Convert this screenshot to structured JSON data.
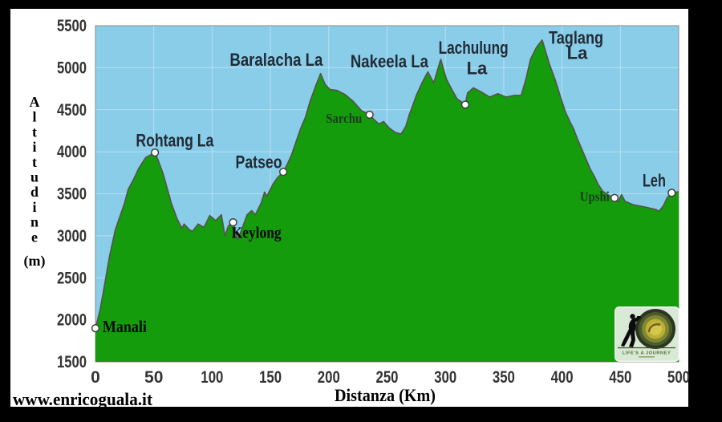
{
  "watermark": {
    "text": "www.enricoguala.it"
  },
  "axes": {
    "y_title": "Altitudine",
    "y_unit": "(m)",
    "x_title": "Distanza (Km)",
    "x_ticks": [
      0,
      50,
      100,
      150,
      200,
      250,
      300,
      350,
      400,
      450,
      500
    ],
    "y_ticks": [
      1500,
      2000,
      2500,
      3000,
      3500,
      4000,
      4500,
      5000,
      5500
    ],
    "x_range": [
      0,
      500
    ],
    "y_range": [
      1500,
      5500
    ],
    "grid": true
  },
  "colors": {
    "background": "#000000",
    "panel": "#ffffff",
    "sky": "#89cde9",
    "terrain": "#149c0c",
    "terrain_outline": "#56524a",
    "grid": "rgba(255,255,255,0.38)",
    "plot_border": "#8a8a8a",
    "marker_fill": "#ffffff",
    "marker_stroke": "#3f3f3f",
    "tick_text": "#333333",
    "label_sans": "#222b36",
    "label_serif": "#070707",
    "label_green": "#1e3a1e",
    "title_text": "#000000"
  },
  "chart_data": {
    "type": "area",
    "title": "",
    "xlabel": "Distanza (Km)",
    "ylabel": "Altitudine (m)",
    "xlim": [
      0,
      500
    ],
    "ylim": [
      1500,
      5500
    ],
    "grid": true,
    "series": [
      {
        "name": "elevation-profile",
        "points": [
          [
            0,
            1900
          ],
          [
            4,
            2120
          ],
          [
            8,
            2430
          ],
          [
            12,
            2750
          ],
          [
            17,
            3070
          ],
          [
            21,
            3230
          ],
          [
            25,
            3390
          ],
          [
            28,
            3550
          ],
          [
            33,
            3680
          ],
          [
            37,
            3800
          ],
          [
            43,
            3930
          ],
          [
            47,
            3960
          ],
          [
            51,
            3990
          ],
          [
            54,
            3890
          ],
          [
            58,
            3740
          ],
          [
            65,
            3390
          ],
          [
            70,
            3200
          ],
          [
            74,
            3090
          ],
          [
            76,
            3140
          ],
          [
            80,
            3080
          ],
          [
            83,
            3050
          ],
          [
            88,
            3140
          ],
          [
            93,
            3100
          ],
          [
            98,
            3240
          ],
          [
            103,
            3180
          ],
          [
            108,
            3250
          ],
          [
            111,
            3000
          ],
          [
            114,
            3120
          ],
          [
            118,
            3160
          ],
          [
            120,
            3060
          ],
          [
            122,
            2950
          ],
          [
            126,
            3100
          ],
          [
            130,
            3250
          ],
          [
            134,
            3300
          ],
          [
            137,
            3250
          ],
          [
            142,
            3390
          ],
          [
            145,
            3520
          ],
          [
            147,
            3470
          ],
          [
            152,
            3610
          ],
          [
            156,
            3690
          ],
          [
            161,
            3760
          ],
          [
            164,
            3840
          ],
          [
            168,
            3960
          ],
          [
            173,
            4160
          ],
          [
            176,
            4280
          ],
          [
            180,
            4410
          ],
          [
            184,
            4600
          ],
          [
            189,
            4790
          ],
          [
            193,
            4930
          ],
          [
            197,
            4800
          ],
          [
            201,
            4740
          ],
          [
            207,
            4730
          ],
          [
            214,
            4680
          ],
          [
            221,
            4600
          ],
          [
            228,
            4490
          ],
          [
            235,
            4440
          ],
          [
            239,
            4380
          ],
          [
            243,
            4330
          ],
          [
            247,
            4360
          ],
          [
            252,
            4280
          ],
          [
            257,
            4230
          ],
          [
            262,
            4210
          ],
          [
            266,
            4300
          ],
          [
            269,
            4440
          ],
          [
            272,
            4550
          ],
          [
            275,
            4670
          ],
          [
            280,
            4820
          ],
          [
            283,
            4900
          ],
          [
            285,
            4950
          ],
          [
            288,
            4870
          ],
          [
            290,
            4820
          ],
          [
            293,
            4960
          ],
          [
            296,
            5100
          ],
          [
            298,
            5000
          ],
          [
            301,
            4860
          ],
          [
            306,
            4730
          ],
          [
            310,
            4630
          ],
          [
            314,
            4590
          ],
          [
            317,
            4560
          ],
          [
            319,
            4700
          ],
          [
            324,
            4760
          ],
          [
            331,
            4710
          ],
          [
            338,
            4650
          ],
          [
            345,
            4690
          ],
          [
            352,
            4650
          ],
          [
            359,
            4670
          ],
          [
            365,
            4670
          ],
          [
            369,
            4860
          ],
          [
            373,
            5100
          ],
          [
            378,
            5240
          ],
          [
            383,
            5330
          ],
          [
            389,
            5050
          ],
          [
            394,
            4860
          ],
          [
            399,
            4640
          ],
          [
            403,
            4470
          ],
          [
            407,
            4350
          ],
          [
            410,
            4270
          ],
          [
            413,
            4160
          ],
          [
            417,
            4030
          ],
          [
            421,
            3900
          ],
          [
            424,
            3800
          ],
          [
            428,
            3700
          ],
          [
            431,
            3610
          ],
          [
            435,
            3530
          ],
          [
            440,
            3480
          ],
          [
            445,
            3450
          ],
          [
            448,
            3400
          ],
          [
            451,
            3490
          ],
          [
            454,
            3410
          ],
          [
            461,
            3370
          ],
          [
            468,
            3350
          ],
          [
            475,
            3330
          ],
          [
            481,
            3310
          ],
          [
            483,
            3290
          ],
          [
            487,
            3360
          ],
          [
            490,
            3450
          ],
          [
            494,
            3510
          ],
          [
            500,
            3525
          ]
        ]
      }
    ],
    "markers": [
      {
        "name": "Manali",
        "km": 0,
        "m": 1900
      },
      {
        "name": "Rohtang La",
        "km": 51,
        "m": 3990
      },
      {
        "name": "Keylong",
        "km": 118,
        "m": 3160
      },
      {
        "name": "Patseo",
        "km": 161,
        "m": 3760
      },
      {
        "name": "Sarchu",
        "km": 235,
        "m": 4440
      },
      {
        "name": "waypoint",
        "km": 317,
        "m": 4560
      },
      {
        "name": "Upshi",
        "km": 445,
        "m": 3450
      },
      {
        "name": "Leh",
        "km": 494,
        "m": 3510
      }
    ],
    "labels": [
      {
        "text": "Manali",
        "km": 25,
        "m": 1900,
        "font": "serif",
        "color": "label_serif",
        "size": 21
      },
      {
        "text": "Rohtang La",
        "km": 68,
        "m": 4120,
        "font": "sans",
        "color": "label_sans",
        "size": 22
      },
      {
        "text": "Keylong",
        "km": 138,
        "m": 3020,
        "font": "serif",
        "color": "label_serif",
        "size": 20
      },
      {
        "text": "Patseo",
        "km": 140,
        "m": 3860,
        "font": "sans",
        "color": "label_sans",
        "size": 22
      },
      {
        "text": "Baralacha La",
        "km": 155,
        "m": 5080,
        "font": "sans",
        "color": "label_sans",
        "size": 22
      },
      {
        "text": "Sarchu",
        "km": 213,
        "m": 4380,
        "font": "serif",
        "color": "label_green",
        "size": 17
      },
      {
        "text": "Nakeela La",
        "km": 252,
        "m": 5060,
        "font": "sans",
        "color": "label_sans",
        "size": 22
      },
      {
        "text": "Lachulung",
        "km": 324,
        "m": 5220,
        "font": "sans",
        "color": "label_sans",
        "size": 22
      },
      {
        "text": "La",
        "km": 327,
        "m": 4980,
        "font": "sans",
        "color": "label_sans",
        "size": 22
      },
      {
        "text": "Taglang",
        "km": 412,
        "m": 5340,
        "font": "sans",
        "color": "label_sans",
        "size": 22
      },
      {
        "text": "La",
        "km": 413,
        "m": 5160,
        "font": "sans",
        "color": "label_sans",
        "size": 22
      },
      {
        "text": "Upshi",
        "km": 428,
        "m": 3450,
        "font": "serif",
        "color": "label_green",
        "size": 17
      },
      {
        "text": "Leh",
        "km": 479,
        "m": 3640,
        "font": "sans",
        "color": "label_sans",
        "size": 22
      }
    ]
  },
  "logo": {
    "caption": "LIFE'S A JOURNEY"
  }
}
